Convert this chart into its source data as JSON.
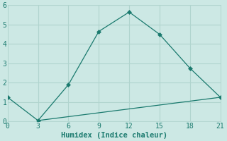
{
  "line1_x": [
    0,
    3,
    6,
    9,
    12,
    15,
    18,
    21
  ],
  "line1_y": [
    1.25,
    0.05,
    1.9,
    4.65,
    5.65,
    4.5,
    2.75,
    1.25
  ],
  "line2_x": [
    3,
    21
  ],
  "line2_y": [
    0.05,
    1.25
  ],
  "line_color": "#1a7a6e",
  "marker": "D",
  "marker_size": 3,
  "xlabel": "Humidex (Indice chaleur)",
  "xlim": [
    0,
    21
  ],
  "ylim": [
    0,
    6
  ],
  "xticks": [
    0,
    3,
    6,
    9,
    12,
    15,
    18,
    21
  ],
  "yticks": [
    0,
    1,
    2,
    3,
    4,
    5,
    6
  ],
  "bg_color": "#cce8e4",
  "grid_color": "#b0d4ce",
  "xlabel_fontsize": 7.5,
  "tick_fontsize": 7,
  "linewidth": 0.9
}
